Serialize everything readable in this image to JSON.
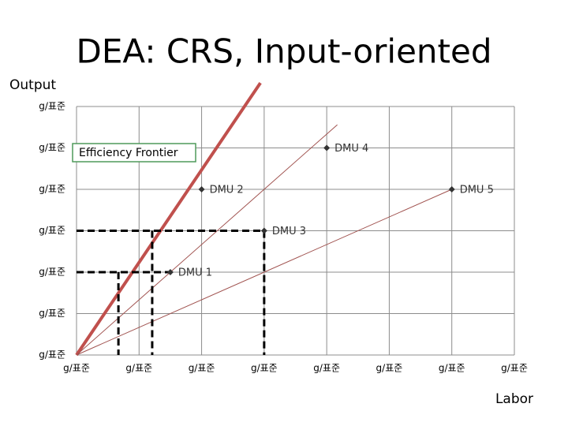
{
  "chart_data": {
    "type": "line",
    "title": "DEA: CRS, Input-oriented",
    "y_label": "Output",
    "x_label": "Labor",
    "frontier_label": "Efficiency Frontier",
    "xlim": [
      0,
      7
    ],
    "ylim": [
      0,
      6
    ],
    "xticks": [
      {
        "value": 0,
        "label": "g/표준"
      },
      {
        "value": 1,
        "label": "g/표준"
      },
      {
        "value": 2,
        "label": "g/표준"
      },
      {
        "value": 3,
        "label": "g/표준"
      },
      {
        "value": 4,
        "label": "g/표준"
      },
      {
        "value": 5,
        "label": "g/표준"
      },
      {
        "value": 6,
        "label": "g/표준"
      },
      {
        "value": 7,
        "label": "g/표준"
      }
    ],
    "yticks": [
      {
        "value": 0,
        "label": "g/표준"
      },
      {
        "value": 1,
        "label": "g/표준"
      },
      {
        "value": 2,
        "label": "g/표준"
      },
      {
        "value": 3,
        "label": "g/표준"
      },
      {
        "value": 4,
        "label": "g/표준"
      },
      {
        "value": 5,
        "label": "g/표준"
      },
      {
        "value": 6,
        "label": "g/표준"
      }
    ],
    "grid": true,
    "lines": [
      {
        "color": "#c0504d",
        "linewidth": 4,
        "dashed": false,
        "x": [
          0,
          2.94
        ],
        "y": [
          0,
          6.57
        ]
      },
      {
        "color": "#a0524f",
        "linewidth": 1,
        "dashed": false,
        "x": [
          0,
          4.17
        ],
        "y": [
          0,
          5.56
        ]
      },
      {
        "color": "#a0524f",
        "linewidth": 1,
        "dashed": false,
        "x": [
          0,
          6
        ],
        "y": [
          0,
          4
        ]
      },
      {
        "color": "#000000",
        "linewidth": 3,
        "dashed": true,
        "x": [
          0,
          3,
          3,
          null,
          1.21,
          1.21
        ],
        "y": [
          3,
          3,
          0,
          null,
          3,
          0
        ]
      },
      {
        "color": "#000000",
        "linewidth": 3,
        "dashed": true,
        "x": [
          0,
          1.5,
          null,
          0.67,
          0.67
        ],
        "y": [
          2,
          2,
          null,
          2,
          0
        ]
      }
    ],
    "points": {
      "color": "#333333",
      "labels": [
        "DMU 1",
        "DMU 2",
        "DMU 3",
        "DMU 4",
        "DMU 5"
      ],
      "x": [
        1.5,
        2,
        3,
        4,
        6
      ],
      "y": [
        2,
        4,
        3,
        5,
        4
      ]
    }
  }
}
